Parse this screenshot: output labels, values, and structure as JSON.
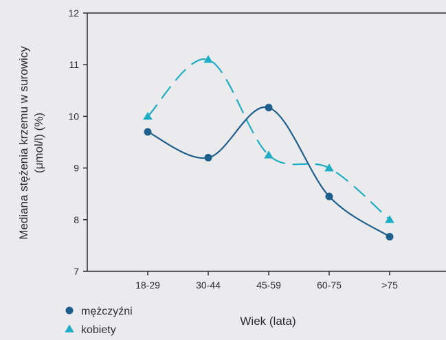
{
  "chart_data": {
    "type": "line",
    "categories": [
      "18-29",
      "30-44",
      "45-59",
      "60-75",
      ">75"
    ],
    "series": [
      {
        "name": "mężczyźni",
        "values": [
          9.7,
          9.2,
          10.17,
          8.45,
          7.67
        ],
        "color": "#1d5e8c",
        "marker": "circle",
        "dashed": false
      },
      {
        "name": "kobiety",
        "values": [
          10.0,
          11.1,
          9.25,
          9.0,
          8.0
        ],
        "color": "#1eadc4",
        "marker": "triangle",
        "dashed": true
      }
    ],
    "xlabel": "Wiek (lata)",
    "ylabel_lines": [
      "Mediana stężenia krzemu w surowicy",
      "(μmol/l) (%)"
    ],
    "ylim": [
      7,
      12
    ],
    "yticks": [
      "7",
      "8",
      "9",
      "10",
      "11",
      "12"
    ],
    "grid": false,
    "legend_position": "bottom-left"
  }
}
